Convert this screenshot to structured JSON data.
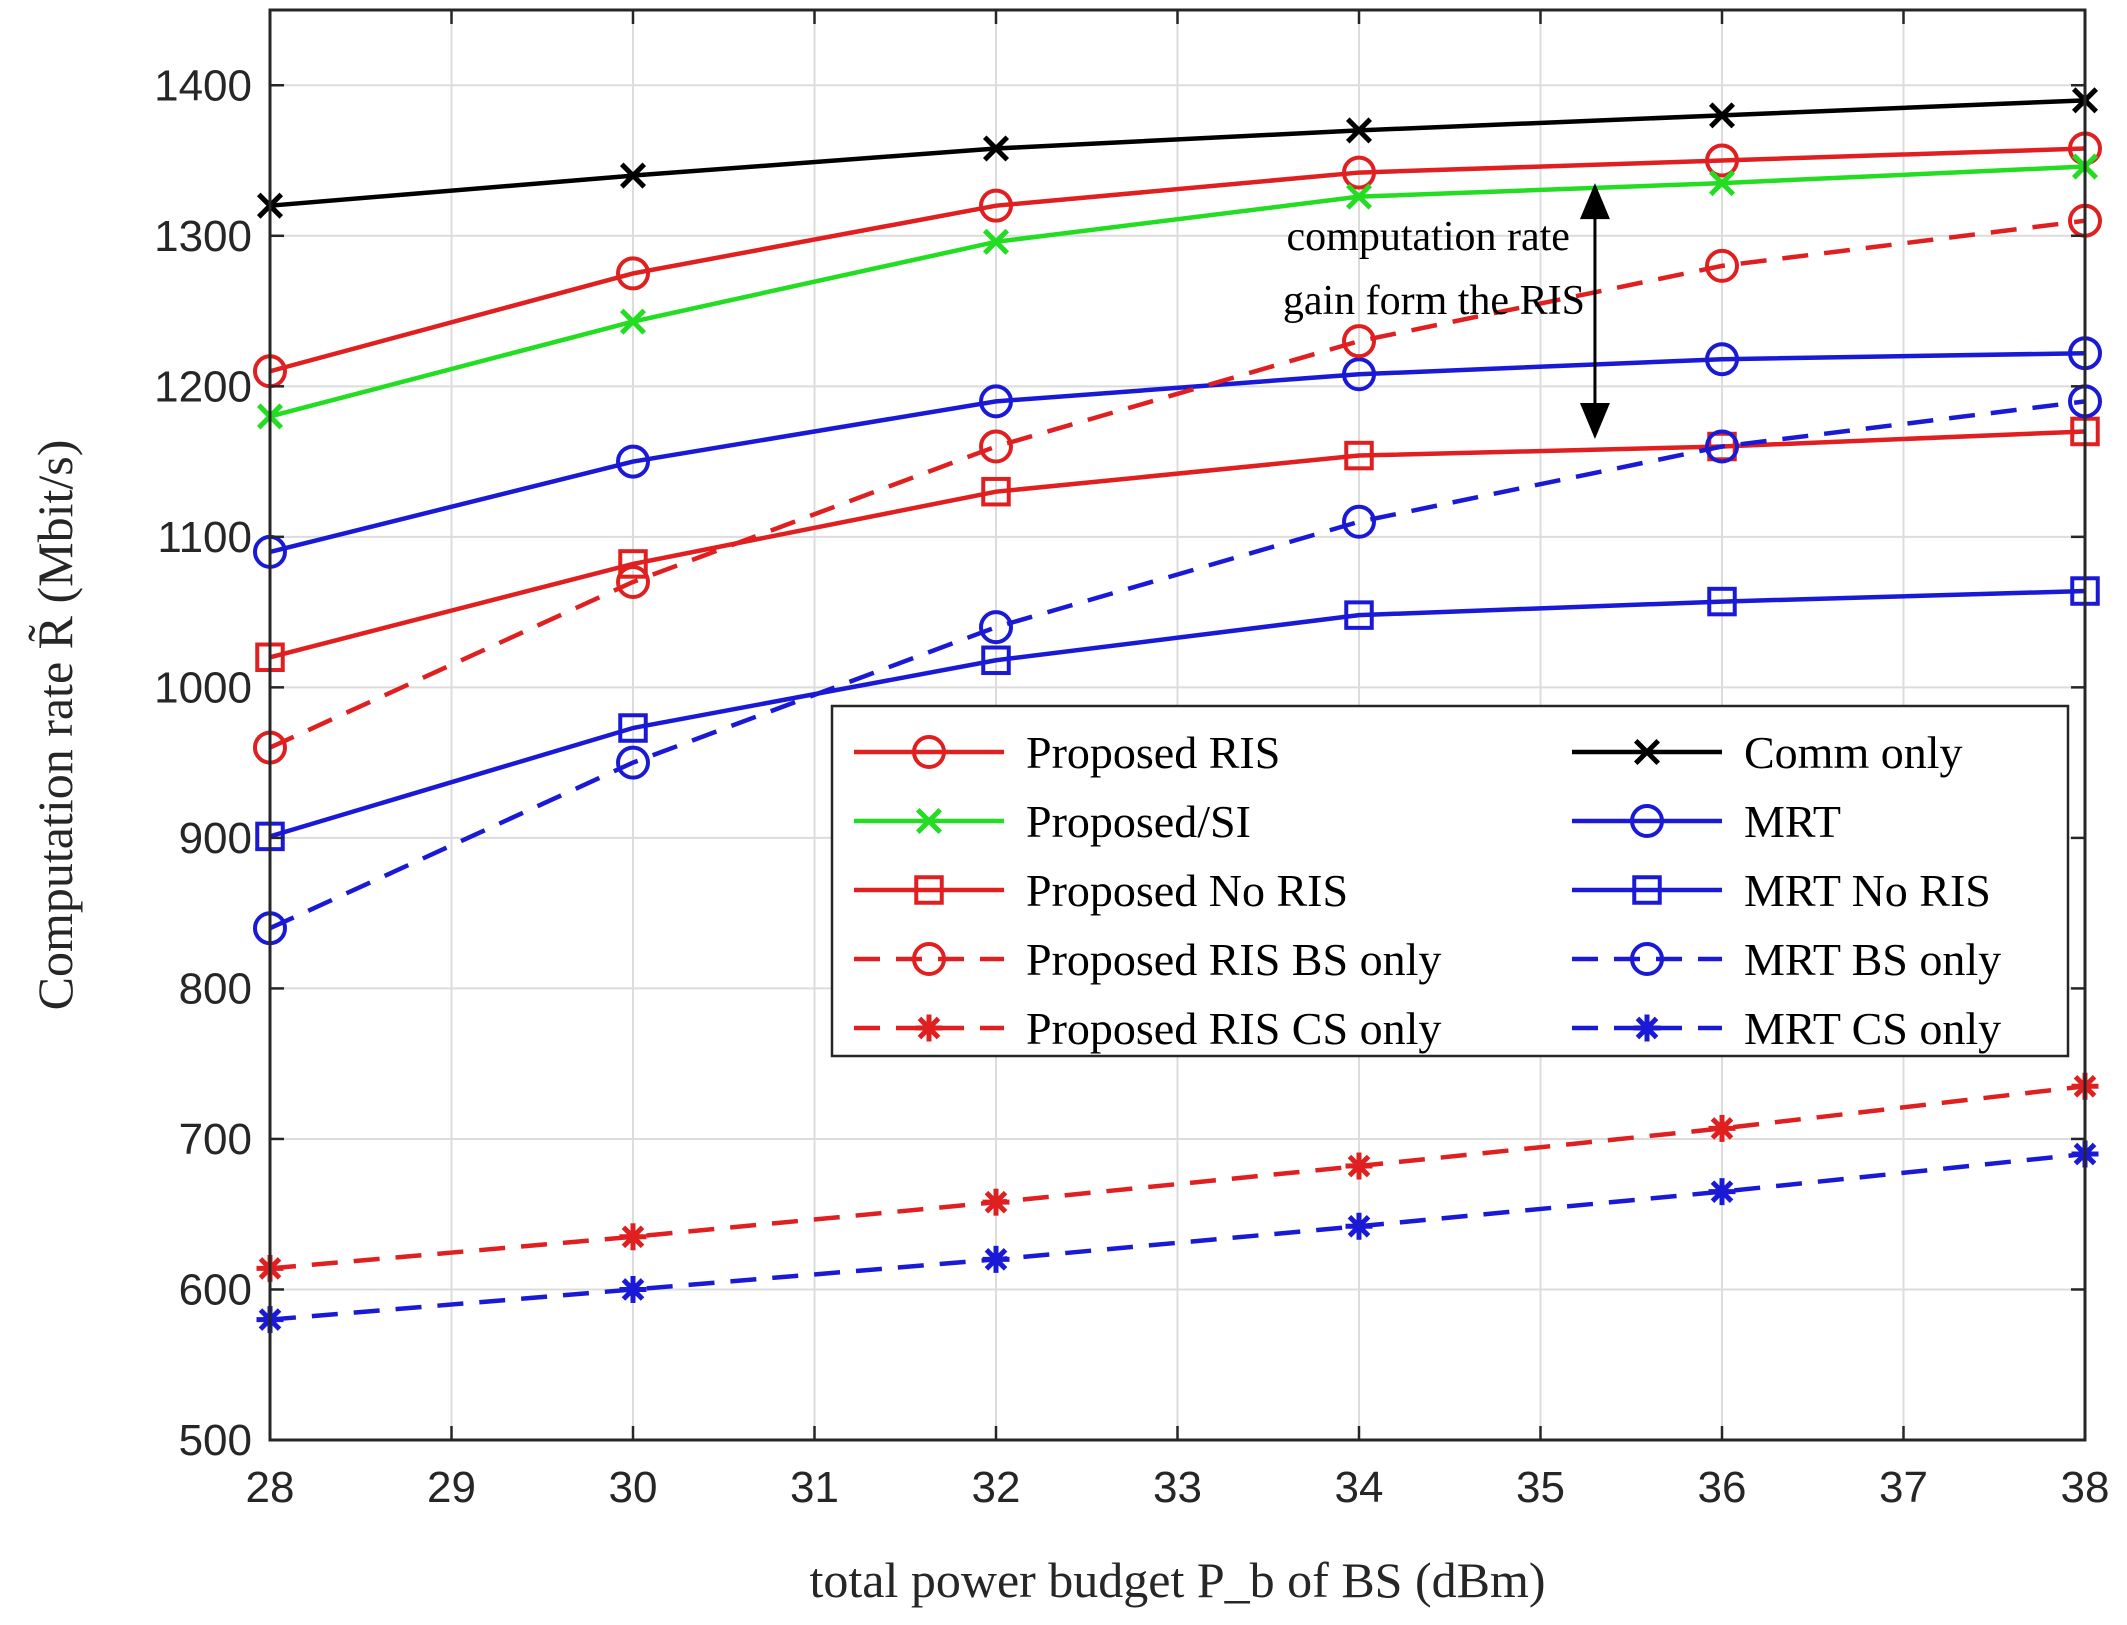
{
  "chart_data": {
    "type": "line",
    "xlabel": "total power budget P_b of BS (dBm)",
    "ylabel": "Computation rate R̃ (Mbit/s)",
    "xlim": [
      28,
      38
    ],
    "ylim": [
      500,
      1450
    ],
    "xticks": [
      "28",
      "29",
      "30",
      "31",
      "32",
      "33",
      "34",
      "35",
      "36",
      "37",
      "38"
    ],
    "yticks": [
      "500",
      "600",
      "700",
      "800",
      "900",
      "1000",
      "1100",
      "1200",
      "1300",
      "1400"
    ],
    "grid": true,
    "legend_position": "center-right",
    "x": [
      28,
      30,
      32,
      34,
      36,
      38
    ],
    "series": [
      {
        "name": "Proposed RIS",
        "color": "#e02020",
        "dash": "solid",
        "marker": "circle",
        "values": [
          1210,
          1275,
          1320,
          1342,
          1350,
          1358
        ]
      },
      {
        "name": "Comm only",
        "color": "#000000",
        "dash": "solid",
        "marker": "x",
        "values": [
          1320,
          1340,
          1358,
          1370,
          1380,
          1390
        ]
      },
      {
        "name": "Proposed/SI",
        "color": "#22dd22",
        "dash": "solid",
        "marker": "x",
        "values": [
          1180,
          1243,
          1296,
          1326,
          1335,
          1346
        ]
      },
      {
        "name": "MRT",
        "color": "#1a1ad6",
        "dash": "solid",
        "marker": "circle",
        "values": [
          1090,
          1150,
          1190,
          1208,
          1218,
          1222
        ]
      },
      {
        "name": "Proposed No RIS",
        "color": "#e02020",
        "dash": "solid",
        "marker": "square",
        "values": [
          1020,
          1082,
          1130,
          1154,
          1160,
          1170
        ]
      },
      {
        "name": "MRT No RIS",
        "color": "#1a1ad6",
        "dash": "solid",
        "marker": "square",
        "values": [
          901,
          973,
          1018,
          1048,
          1057,
          1064
        ]
      },
      {
        "name": "Proposed RIS BS only",
        "color": "#e02020",
        "dash": "dashed",
        "marker": "circle",
        "values": [
          960,
          1070,
          1160,
          1230,
          1280,
          1310
        ]
      },
      {
        "name": "MRT BS only",
        "color": "#1a1ad6",
        "dash": "dashed",
        "marker": "circle",
        "values": [
          840,
          950,
          1040,
          1110,
          1160,
          1190
        ]
      },
      {
        "name": "Proposed RIS CS only",
        "color": "#e02020",
        "dash": "dashed",
        "marker": "star",
        "values": [
          614,
          635,
          658,
          682,
          707,
          735
        ]
      },
      {
        "name": "MRT CS only",
        "color": "#1a1ad6",
        "dash": "dashed",
        "marker": "star",
        "values": [
          580,
          600,
          620,
          642,
          665,
          690
        ]
      }
    ],
    "annotation": {
      "lines": [
        "computation rate",
        "gain form the RIS"
      ],
      "x": 35.3,
      "y_top": 1335,
      "y_bottom": 1165
    }
  }
}
